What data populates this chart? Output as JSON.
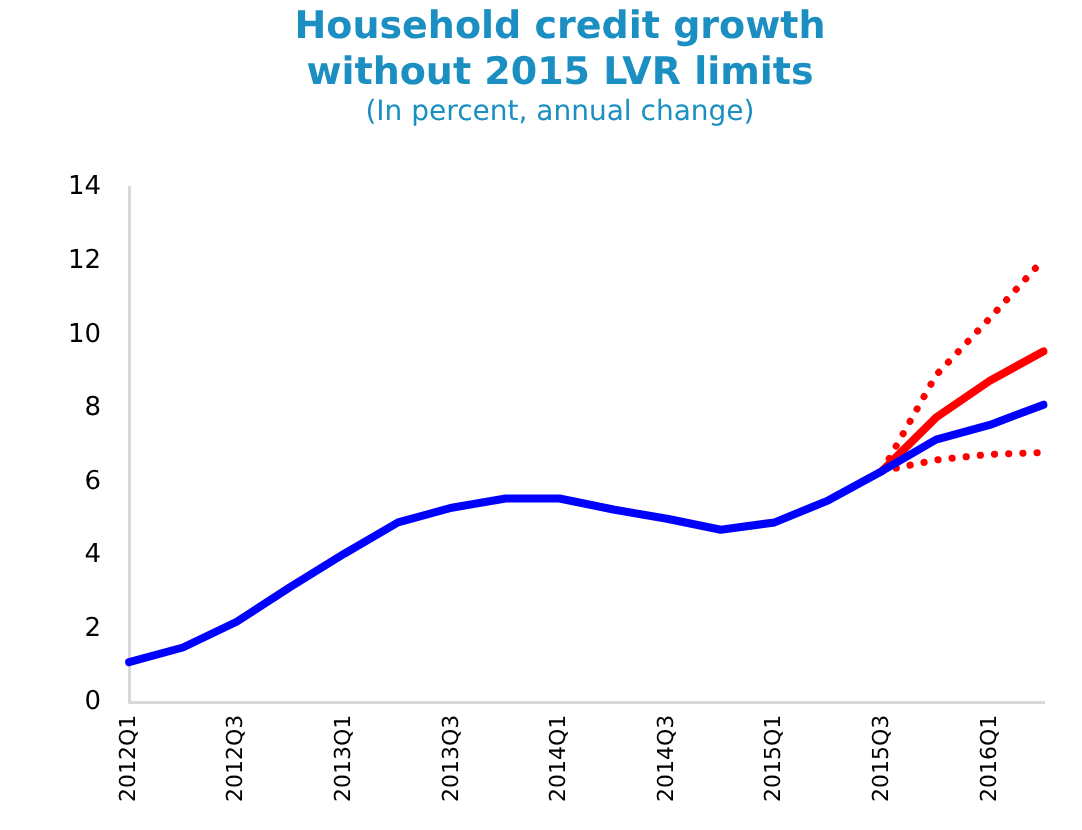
{
  "chart_data": {
    "type": "line",
    "title": "Household credit growth without 2015 LVR limits",
    "subtitle": "(In percent, annual change)",
    "categories": [
      "2012Q1",
      null,
      "2012Q3",
      null,
      "2013Q1",
      null,
      "2013Q3",
      null,
      "2014Q1",
      null,
      "2014Q3",
      null,
      "2015Q1",
      null,
      "2015Q3",
      null,
      "2016Q1",
      null
    ],
    "ylim": [
      0,
      14
    ],
    "yticks": [
      0,
      2,
      4,
      6,
      8,
      10,
      12,
      14
    ],
    "grid": false,
    "legend": false,
    "marker": "none",
    "series": [
      {
        "color": "#0000ff",
        "line_style": "solid",
        "values": [
          1.1,
          1.5,
          2.2,
          3.15,
          4.05,
          4.9,
          5.3,
          5.55,
          5.55,
          5.25,
          5.0,
          4.7,
          4.9,
          5.5,
          6.3,
          7.15,
          7.55,
          8.1
        ]
      },
      {
        "color": "#ff0000",
        "line_style": "solid",
        "values": [
          null,
          null,
          null,
          null,
          null,
          null,
          null,
          null,
          null,
          null,
          null,
          null,
          null,
          null,
          6.3,
          7.75,
          8.75,
          9.55
        ]
      },
      {
        "color": "#ff0000",
        "line_style": "dotted",
        "values": [
          null,
          null,
          null,
          null,
          null,
          null,
          null,
          null,
          null,
          null,
          null,
          null,
          null,
          null,
          6.3,
          8.9,
          10.45,
          12.05
        ]
      },
      {
        "color": "#ff0000",
        "line_style": "dotted",
        "values": [
          null,
          null,
          null,
          null,
          null,
          null,
          null,
          null,
          null,
          null,
          null,
          null,
          null,
          null,
          6.3,
          6.6,
          6.75,
          6.8
        ]
      }
    ]
  }
}
